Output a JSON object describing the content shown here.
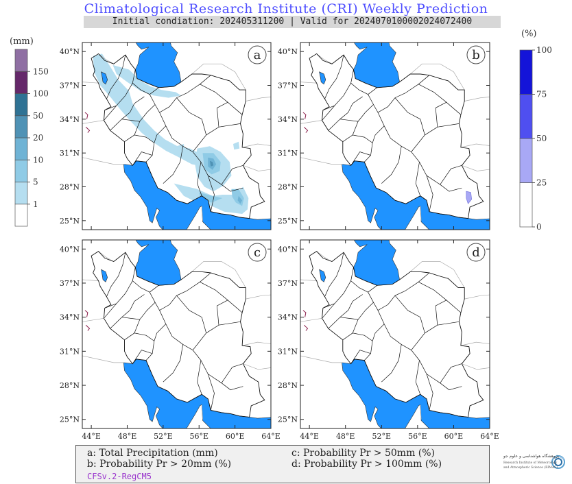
{
  "header": {
    "title": "Climatological Research Institute (CRI) Weekly Prediction",
    "subtitle": "Initial condiation: 202405311200 | Valid for 2024070100002024072400"
  },
  "precip_colorbar": {
    "unit": "(mm)",
    "levels": [
      "1",
      "5",
      "10",
      "20",
      "50",
      "100",
      "150"
    ],
    "colors": [
      "#ffffff",
      "#b5def0",
      "#8fcbe6",
      "#6fb3d5",
      "#4f92b5",
      "#2f7294",
      "#65286a",
      "#8f6fa3"
    ]
  },
  "prob_colorbar": {
    "unit": "(%)",
    "levels": [
      "0",
      "25",
      "50",
      "75",
      "100"
    ],
    "colors": [
      "#ffffff",
      "#a8a8f5",
      "#4f4ff0",
      "#1414d9"
    ]
  },
  "map": {
    "lat_ticks": [
      "40°N",
      "37°N",
      "34°N",
      "31°N",
      "28°N",
      "25°N"
    ],
    "lon_ticks": [
      "44°E",
      "48°E",
      "52°E",
      "56°E",
      "60°E",
      "64°E"
    ],
    "water_color": "#1f93ff",
    "panels": [
      {
        "id": "a",
        "label": "a"
      },
      {
        "id": "b",
        "label": "b"
      },
      {
        "id": "c",
        "label": "c"
      },
      {
        "id": "d",
        "label": "d"
      }
    ]
  },
  "legend": {
    "a": "a: Total Precipitation (mm)",
    "b": "b: Probability Pr > 20mm (%)",
    "c": "c: Probability Pr > 50mm (%)",
    "d": "d: Probability Pr > 100mm (%)",
    "model": "CFSv.2-RegCM5"
  },
  "logo": {
    "name": "institute-logo",
    "line1": "پژوهشگاه هواشناسی و علوم جو",
    "line2": "Research Institute of Meteorology",
    "line3": "and Atmospheric Science (RIMAS)"
  }
}
